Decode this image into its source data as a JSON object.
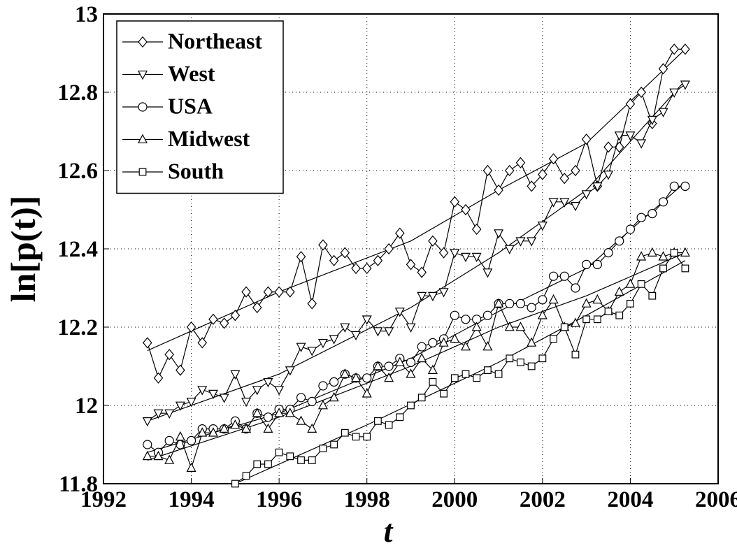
{
  "chart_data": {
    "type": "line",
    "xlabel": "t",
    "ylabel": "ln[p(t)]",
    "x": [
      1993,
      1993.25,
      1993.5,
      1993.75,
      1994,
      1994.25,
      1994.5,
      1994.75,
      1995,
      1995.25,
      1995.5,
      1995.75,
      1996,
      1996.25,
      1996.5,
      1996.75,
      1997,
      1997.25,
      1997.5,
      1997.75,
      1998,
      1998.25,
      1998.5,
      1998.75,
      1999,
      1999.25,
      1999.5,
      1999.75,
      2000,
      2000.25,
      2000.5,
      2000.75,
      2001,
      2001.25,
      2001.5,
      2001.75,
      2002,
      2002.25,
      2002.5,
      2002.75,
      2003,
      2003.25,
      2003.5,
      2003.75,
      2004,
      2004.25,
      2004.5,
      2004.75,
      2005,
      2005.25
    ],
    "series": [
      {
        "name": "Northeast",
        "color": "#000000",
        "marker": "diamond",
        "values": [
          12.16,
          12.07,
          12.13,
          12.09,
          12.2,
          12.16,
          12.22,
          12.21,
          12.23,
          12.29,
          12.25,
          12.29,
          12.29,
          12.29,
          12.38,
          12.26,
          12.41,
          12.37,
          12.39,
          12.35,
          12.35,
          12.37,
          12.4,
          12.44,
          12.36,
          12.34,
          12.42,
          12.39,
          12.52,
          12.5,
          12.45,
          12.6,
          12.55,
          12.6,
          12.62,
          12.56,
          12.59,
          12.63,
          12.58,
          12.6,
          12.68,
          12.56,
          12.66,
          12.66,
          12.77,
          12.8,
          12.72,
          12.86,
          12.91,
          12.91
        ]
      },
      {
        "name": "West",
        "color": "#000000",
        "marker": "triangle-down",
        "values": [
          11.96,
          11.98,
          11.98,
          12.0,
          12.01,
          12.04,
          12.03,
          12.02,
          12.08,
          12.01,
          12.04,
          12.06,
          12.04,
          12.09,
          12.15,
          12.14,
          12.16,
          12.17,
          12.2,
          12.18,
          12.22,
          12.19,
          12.19,
          12.24,
          12.2,
          12.28,
          12.28,
          12.29,
          12.39,
          12.38,
          12.38,
          12.34,
          12.44,
          12.4,
          12.42,
          12.42,
          12.46,
          12.52,
          12.52,
          12.51,
          12.54,
          12.56,
          12.59,
          12.69,
          12.69,
          12.67,
          12.73,
          12.75,
          12.8,
          12.82
        ]
      },
      {
        "name": "USA",
        "color": "#000000",
        "marker": "circle",
        "values": [
          11.9,
          11.88,
          11.91,
          11.9,
          11.91,
          11.94,
          11.94,
          11.94,
          11.96,
          11.94,
          11.98,
          11.97,
          11.99,
          11.99,
          12.02,
          12.01,
          12.05,
          12.06,
          12.08,
          12.07,
          12.07,
          12.1,
          12.1,
          12.12,
          12.11,
          12.15,
          12.16,
          12.17,
          12.23,
          12.22,
          12.22,
          12.23,
          12.26,
          12.26,
          12.26,
          12.25,
          12.27,
          12.33,
          12.33,
          12.3,
          12.36,
          12.36,
          12.39,
          12.42,
          12.45,
          12.48,
          12.49,
          12.52,
          12.56,
          12.56
        ]
      },
      {
        "name": "Midwest",
        "color": "#000000",
        "marker": "triangle-up",
        "values": [
          11.87,
          11.87,
          11.86,
          11.92,
          11.84,
          11.93,
          11.93,
          11.94,
          11.95,
          11.94,
          11.98,
          11.94,
          11.98,
          11.98,
          11.96,
          11.94,
          12.0,
          12.02,
          12.08,
          12.07,
          12.03,
          12.1,
          12.07,
          12.11,
          12.08,
          12.12,
          12.09,
          12.16,
          12.17,
          12.15,
          12.2,
          12.15,
          12.26,
          12.2,
          12.2,
          12.16,
          12.23,
          12.27,
          12.2,
          12.21,
          12.26,
          12.27,
          12.24,
          12.29,
          12.31,
          12.38,
          12.39,
          12.38,
          12.39,
          12.39
        ]
      },
      {
        "name": "South",
        "color": "#000000",
        "marker": "square",
        "values": [
          null,
          null,
          null,
          null,
          null,
          null,
          null,
          null,
          11.8,
          11.82,
          11.85,
          11.85,
          11.88,
          11.87,
          11.86,
          11.86,
          11.89,
          11.9,
          11.93,
          11.92,
          11.92,
          11.96,
          11.95,
          11.97,
          12.0,
          12.02,
          12.06,
          12.03,
          12.07,
          12.08,
          12.07,
          12.09,
          12.08,
          12.12,
          12.11,
          12.1,
          12.12,
          12.17,
          12.2,
          12.13,
          12.22,
          12.22,
          12.24,
          12.23,
          12.26,
          12.31,
          12.28,
          12.35,
          12.39,
          12.35
        ]
      }
    ],
    "fits": [
      {
        "x": [
          1993,
          1996,
          1999,
          2001,
          2003,
          2005.25
        ],
        "values": [
          12.14,
          12.29,
          12.42,
          12.55,
          12.67,
          12.91
        ]
      },
      {
        "x": [
          1993,
          1996,
          1999,
          2001,
          2003,
          2005.25
        ],
        "values": [
          11.96,
          12.08,
          12.25,
          12.39,
          12.55,
          12.83
        ]
      },
      {
        "x": [
          1993,
          1996,
          1999,
          2001,
          2003,
          2005.25
        ],
        "values": [
          11.88,
          11.98,
          12.12,
          12.24,
          12.35,
          12.57
        ]
      },
      {
        "x": [
          1993,
          1996,
          1999,
          2001,
          2003,
          2005.25
        ],
        "values": [
          11.86,
          11.97,
          12.1,
          12.2,
          12.28,
          12.39
        ]
      },
      {
        "x": [
          1995,
          1998,
          2001,
          2003,
          2005.25
        ],
        "values": [
          11.8,
          11.95,
          12.11,
          12.23,
          12.37
        ]
      }
    ],
    "xlim": [
      1992,
      2006
    ],
    "xticks": [
      1992,
      1994,
      1996,
      1998,
      2000,
      2002,
      2004,
      2006
    ],
    "ylim": [
      11.8,
      13
    ],
    "yticks": [
      11.8,
      12,
      12.2,
      12.4,
      12.6,
      12.8,
      13
    ],
    "grid": true,
    "legend": "upper left"
  }
}
